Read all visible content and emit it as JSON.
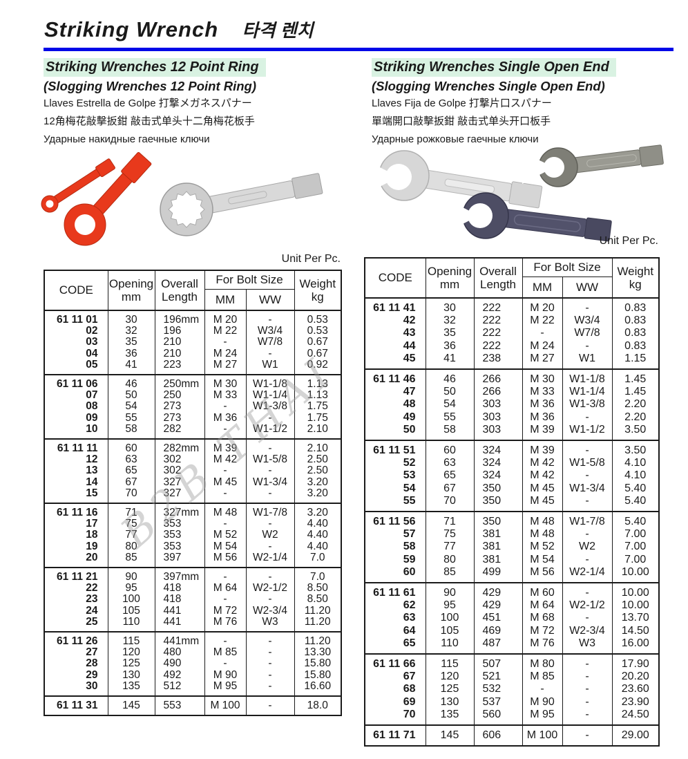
{
  "page_title": {
    "en": "Striking Wrench",
    "ko": "타격 렌치"
  },
  "colors": {
    "accent_blue": "#0008e8",
    "title_highlight_green": "#d9f2e2",
    "wrench_red": "#e8391c",
    "wrench_silver": "#cdcdcd",
    "wrench_dark_gray": "#8f8f87",
    "wrench_navy": "#4d4d64"
  },
  "watermark": "B2B THAI",
  "table_headers": {
    "code": "CODE",
    "opening_1": "Opening",
    "opening_2": "mm",
    "overall_1": "Overall",
    "overall_2": "Length",
    "bolt": "For Bolt Size",
    "mm": "MM",
    "ww": "WW",
    "weight_1": "Weight",
    "weight_2": "kg"
  },
  "sections": [
    {
      "title": "Striking Wrenches 12 Point Ring",
      "subtitle": "(Slogging Wrenches 12 Point Ring)",
      "line_es_ja": "Llaves Estrella de Golpe  打撃メガネスパナー",
      "line_zh": "12角梅花敲擊扳鉗  敲击式单头十二角梅花板手",
      "line_ru": "Ударные накидные гаечные ключи",
      "unit_label": "Unit Per Pc.",
      "table": {
        "groups": [
          [
            {
              "code": "61 11 01",
              "opening": "30",
              "length": "196mm",
              "mm": "M 20",
              "ww": "-",
              "weight": "0.53"
            },
            {
              "code": "02",
              "opening": "32",
              "length": "196",
              "mm": "M 22",
              "ww": "W3/4",
              "weight": "0.53"
            },
            {
              "code": "03",
              "opening": "35",
              "length": "210",
              "mm": "-",
              "ww": "W7/8",
              "weight": "0.67"
            },
            {
              "code": "04",
              "opening": "36",
              "length": "210",
              "mm": "M 24",
              "ww": "-",
              "weight": "0.67"
            },
            {
              "code": "05",
              "opening": "41",
              "length": "223",
              "mm": "M 27",
              "ww": "W1",
              "weight": "0.92"
            }
          ],
          [
            {
              "code": "61 11 06",
              "opening": "46",
              "length": "250mm",
              "mm": "M 30",
              "ww": "W1-1/8",
              "weight": "1.13"
            },
            {
              "code": "07",
              "opening": "50",
              "length": "250",
              "mm": "M 33",
              "ww": "W1-1/4",
              "weight": "1.13"
            },
            {
              "code": "08",
              "opening": "54",
              "length": "273",
              "mm": "-",
              "ww": "W1-3/8",
              "weight": "1.75"
            },
            {
              "code": "09",
              "opening": "55",
              "length": "273",
              "mm": "M 36",
              "ww": "-",
              "weight": "1.75"
            },
            {
              "code": "10",
              "opening": "58",
              "length": "282",
              "mm": "-",
              "ww": "W1-1/2",
              "weight": "2.10"
            }
          ],
          [
            {
              "code": "61 11 11",
              "opening": "60",
              "length": "282mm",
              "mm": "M 39",
              "ww": "-",
              "weight": "2.10"
            },
            {
              "code": "12",
              "opening": "63",
              "length": "302",
              "mm": "M 42",
              "ww": "W1-5/8",
              "weight": "2.50"
            },
            {
              "code": "13",
              "opening": "65",
              "length": "302",
              "mm": "-",
              "ww": "-",
              "weight": "2.50"
            },
            {
              "code": "14",
              "opening": "67",
              "length": "327",
              "mm": "M 45",
              "ww": "W1-3/4",
              "weight": "3.20"
            },
            {
              "code": "15",
              "opening": "70",
              "length": "327",
              "mm": "-",
              "ww": "-",
              "weight": "3.20"
            }
          ],
          [
            {
              "code": "61 11 16",
              "opening": "71",
              "length": "327mm",
              "mm": "M 48",
              "ww": "W1-7/8",
              "weight": "3.20"
            },
            {
              "code": "17",
              "opening": "75",
              "length": "353",
              "mm": "-",
              "ww": "-",
              "weight": "4.40"
            },
            {
              "code": "18",
              "opening": "77",
              "length": "353",
              "mm": "M 52",
              "ww": "W2",
              "weight": "4.40"
            },
            {
              "code": "19",
              "opening": "80",
              "length": "353",
              "mm": "M 54",
              "ww": "-",
              "weight": "4.40"
            },
            {
              "code": "20",
              "opening": "85",
              "length": "397",
              "mm": "M 56",
              "ww": "W2-1/4",
              "weight": "7.0"
            }
          ],
          [
            {
              "code": "61 11 21",
              "opening": "90",
              "length": "397mm",
              "mm": "-",
              "ww": "-",
              "weight": "7.0"
            },
            {
              "code": "22",
              "opening": "95",
              "length": "418",
              "mm": "M 64",
              "ww": "W2-1/2",
              "weight": "8.50"
            },
            {
              "code": "23",
              "opening": "100",
              "length": "418",
              "mm": "-",
              "ww": "-",
              "weight": "8.50"
            },
            {
              "code": "24",
              "opening": "105",
              "length": "441",
              "mm": "M 72",
              "ww": "W2-3/4",
              "weight": "11.20"
            },
            {
              "code": "25",
              "opening": "110",
              "length": "441",
              "mm": "M 76",
              "ww": "W3",
              "weight": "11.20"
            }
          ],
          [
            {
              "code": "61 11 26",
              "opening": "115",
              "length": "441mm",
              "mm": "-",
              "ww": "-",
              "weight": "11.20"
            },
            {
              "code": "27",
              "opening": "120",
              "length": "480",
              "mm": "M 85",
              "ww": "-",
              "weight": "13.30"
            },
            {
              "code": "28",
              "opening": "125",
              "length": "490",
              "mm": "-",
              "ww": "-",
              "weight": "15.80"
            },
            {
              "code": "29",
              "opening": "130",
              "length": "492",
              "mm": "M 90",
              "ww": "-",
              "weight": "15.80"
            },
            {
              "code": "30",
              "opening": "135",
              "length": "512",
              "mm": "M 95",
              "ww": "-",
              "weight": "16.60"
            }
          ],
          [
            {
              "code": "61 11 31",
              "opening": "145",
              "length": "553",
              "mm": "M 100",
              "ww": "-",
              "weight": "18.0"
            }
          ]
        ]
      }
    },
    {
      "title": "Striking Wrenches Single Open End",
      "subtitle": "(Slogging Wrenches Single Open End)",
      "line_es_ja": "Llaves Fija de Golpe 打撃片口スパナー",
      "line_zh": "單端開口敲擊扳鉗  敲击式单头开口板手",
      "line_ru": "Ударные рожковые гаечные ключи",
      "unit_label": "Unit Per Pc.",
      "table": {
        "groups": [
          [
            {
              "code": "61 11 41",
              "opening": "30",
              "length": "222",
              "mm": "M 20",
              "ww": "-",
              "weight": "0.83"
            },
            {
              "code": "42",
              "opening": "32",
              "length": "222",
              "mm": "M 22",
              "ww": "W3/4",
              "weight": "0.83"
            },
            {
              "code": "43",
              "opening": "35",
              "length": "222",
              "mm": "-",
              "ww": "W7/8",
              "weight": "0.83"
            },
            {
              "code": "44",
              "opening": "36",
              "length": "222",
              "mm": "M 24",
              "ww": "-",
              "weight": "0.83"
            },
            {
              "code": "45",
              "opening": "41",
              "length": "238",
              "mm": "M 27",
              "ww": "W1",
              "weight": "1.15"
            }
          ],
          [
            {
              "code": "61 11 46",
              "opening": "46",
              "length": "266",
              "mm": "M 30",
              "ww": "W1-1/8",
              "weight": "1.45"
            },
            {
              "code": "47",
              "opening": "50",
              "length": "266",
              "mm": "M 33",
              "ww": "W1-1/4",
              "weight": "1.45"
            },
            {
              "code": "48",
              "opening": "54",
              "length": "303",
              "mm": "M 36",
              "ww": "W1-3/8",
              "weight": "2.20"
            },
            {
              "code": "49",
              "opening": "55",
              "length": "303",
              "mm": "M 36",
              "ww": "-",
              "weight": "2.20"
            },
            {
              "code": "50",
              "opening": "58",
              "length": "303",
              "mm": "M 39",
              "ww": "W1-1/2",
              "weight": "3.50"
            }
          ],
          [
            {
              "code": "61 11 51",
              "opening": "60",
              "length": "324",
              "mm": "M 39",
              "ww": "-",
              "weight": "3.50"
            },
            {
              "code": "52",
              "opening": "63",
              "length": "324",
              "mm": "M 42",
              "ww": "W1-5/8",
              "weight": "4.10"
            },
            {
              "code": "53",
              "opening": "65",
              "length": "324",
              "mm": "M 42",
              "ww": "-",
              "weight": "4.10"
            },
            {
              "code": "54",
              "opening": "67",
              "length": "350",
              "mm": "M 45",
              "ww": "W1-3/4",
              "weight": "5.40"
            },
            {
              "code": "55",
              "opening": "70",
              "length": "350",
              "mm": "M 45",
              "ww": "-",
              "weight": "5.40"
            }
          ],
          [
            {
              "code": "61 11 56",
              "opening": "71",
              "length": "350",
              "mm": "M 48",
              "ww": "W1-7/8",
              "weight": "5.40"
            },
            {
              "code": "57",
              "opening": "75",
              "length": "381",
              "mm": "M 48",
              "ww": "-",
              "weight": "7.00"
            },
            {
              "code": "58",
              "opening": "77",
              "length": "381",
              "mm": "M 52",
              "ww": "W2",
              "weight": "7.00"
            },
            {
              "code": "59",
              "opening": "80",
              "length": "381",
              "mm": "M 54",
              "ww": "-",
              "weight": "7.00"
            },
            {
              "code": "60",
              "opening": "85",
              "length": "499",
              "mm": "M 56",
              "ww": "W2-1/4",
              "weight": "10.00"
            }
          ],
          [
            {
              "code": "61 11 61",
              "opening": "90",
              "length": "429",
              "mm": "M 60",
              "ww": "-",
              "weight": "10.00"
            },
            {
              "code": "62",
              "opening": "95",
              "length": "429",
              "mm": "M 64",
              "ww": "W2-1/2",
              "weight": "10.00"
            },
            {
              "code": "63",
              "opening": "100",
              "length": "451",
              "mm": "M 68",
              "ww": "-",
              "weight": "13.70"
            },
            {
              "code": "64",
              "opening": "105",
              "length": "469",
              "mm": "M 72",
              "ww": "W2-3/4",
              "weight": "14.50"
            },
            {
              "code": "65",
              "opening": "110",
              "length": "487",
              "mm": "M 76",
              "ww": "W3",
              "weight": "16.00"
            }
          ],
          [
            {
              "code": "61 11 66",
              "opening": "115",
              "length": "507",
              "mm": "M 80",
              "ww": "-",
              "weight": "17.90"
            },
            {
              "code": "67",
              "opening": "120",
              "length": "521",
              "mm": "M 85",
              "ww": "-",
              "weight": "20.20"
            },
            {
              "code": "68",
              "opening": "125",
              "length": "532",
              "mm": "-",
              "ww": "-",
              "weight": "23.60"
            },
            {
              "code": "69",
              "opening": "130",
              "length": "537",
              "mm": "M 90",
              "ww": "-",
              "weight": "23.90"
            },
            {
              "code": "70",
              "opening": "135",
              "length": "560",
              "mm": "M 95",
              "ww": "-",
              "weight": "24.50"
            }
          ],
          [
            {
              "code": "61 11 71",
              "opening": "145",
              "length": "606",
              "mm": "M 100",
              "ww": "-",
              "weight": "29.00"
            }
          ]
        ]
      }
    }
  ]
}
